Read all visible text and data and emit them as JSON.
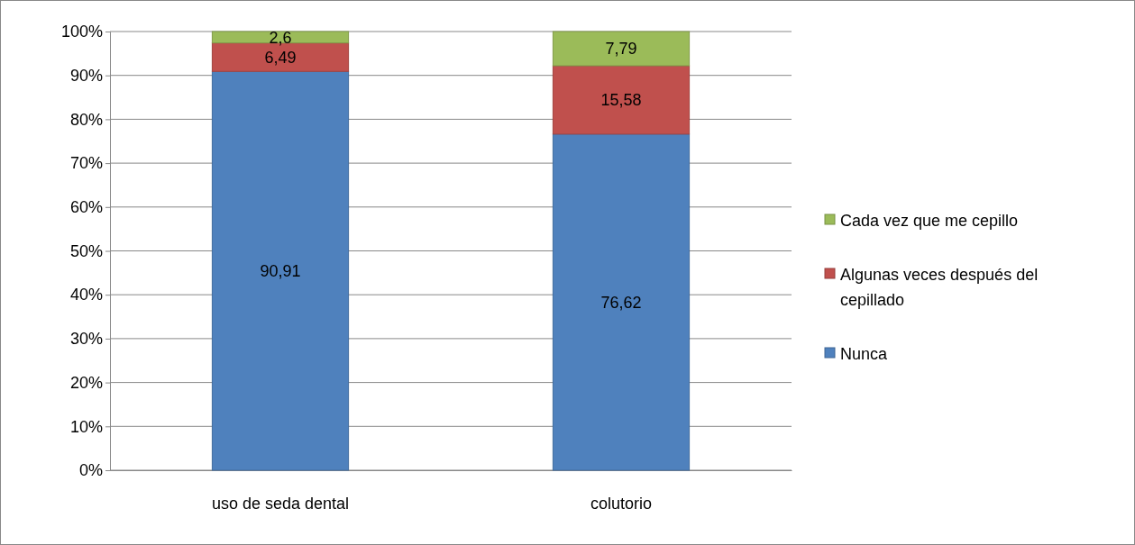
{
  "chart_data": {
    "type": "bar",
    "stacked": true,
    "categories": [
      "uso de seda dental",
      "colutorio"
    ],
    "series": [
      {
        "name": "Nunca",
        "color": "#4f81bd",
        "values": [
          90.91,
          76.62
        ],
        "value_labels": [
          "90,91",
          "76,62"
        ]
      },
      {
        "name": "Algunas veces después del cepillado",
        "color": "#c0504d",
        "values": [
          6.49,
          15.58
        ],
        "value_labels": [
          "6,49",
          "15,58"
        ]
      },
      {
        "name": "Cada vez que me cepillo",
        "color": "#9bbb59",
        "values": [
          2.6,
          7.79
        ],
        "value_labels": [
          "2,6",
          "7,79"
        ]
      }
    ],
    "ylim": [
      0,
      100
    ],
    "yticks": [
      {
        "value": 0,
        "label": "0%"
      },
      {
        "value": 10,
        "label": "10%"
      },
      {
        "value": 20,
        "label": "20%"
      },
      {
        "value": 30,
        "label": "30%"
      },
      {
        "value": 40,
        "label": "40%"
      },
      {
        "value": 50,
        "label": "50%"
      },
      {
        "value": 60,
        "label": "60%"
      },
      {
        "value": 70,
        "label": "70%"
      },
      {
        "value": 80,
        "label": "80%"
      },
      {
        "value": 90,
        "label": "90%"
      },
      {
        "value": 100,
        "label": "100%"
      }
    ],
    "grid": "y",
    "legend": "right"
  }
}
